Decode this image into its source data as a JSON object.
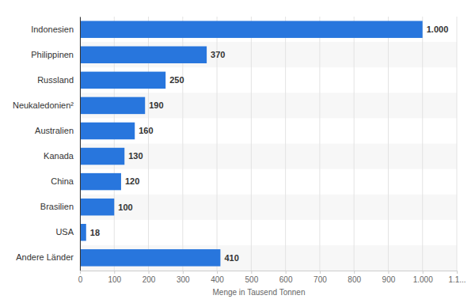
{
  "chart_data": {
    "type": "bar",
    "orientation": "horizontal",
    "categories": [
      "Indonesien",
      "Philippinen",
      "Russland",
      "Neukaledonien²",
      "Australien",
      "Kanada",
      "China",
      "Brasilien",
      "USA",
      "Andere Länder"
    ],
    "values": [
      1000,
      370,
      250,
      190,
      160,
      130,
      120,
      100,
      18,
      410
    ],
    "value_labels": [
      "1.000",
      "370",
      "250",
      "190",
      "160",
      "130",
      "120",
      "100",
      "18",
      "410"
    ],
    "data_labels": true,
    "color": "#2876dd",
    "x_label": "Menge in Tausend Tonnen",
    "xlim": [
      0,
      1100
    ],
    "xticks": [
      0,
      100,
      200,
      300,
      400,
      500,
      600,
      700,
      800,
      900,
      {
        "value": 1000,
        "label": "1.000"
      },
      {
        "value": 1100,
        "label": "1.1..."
      }
    ],
    "grid": true
  }
}
